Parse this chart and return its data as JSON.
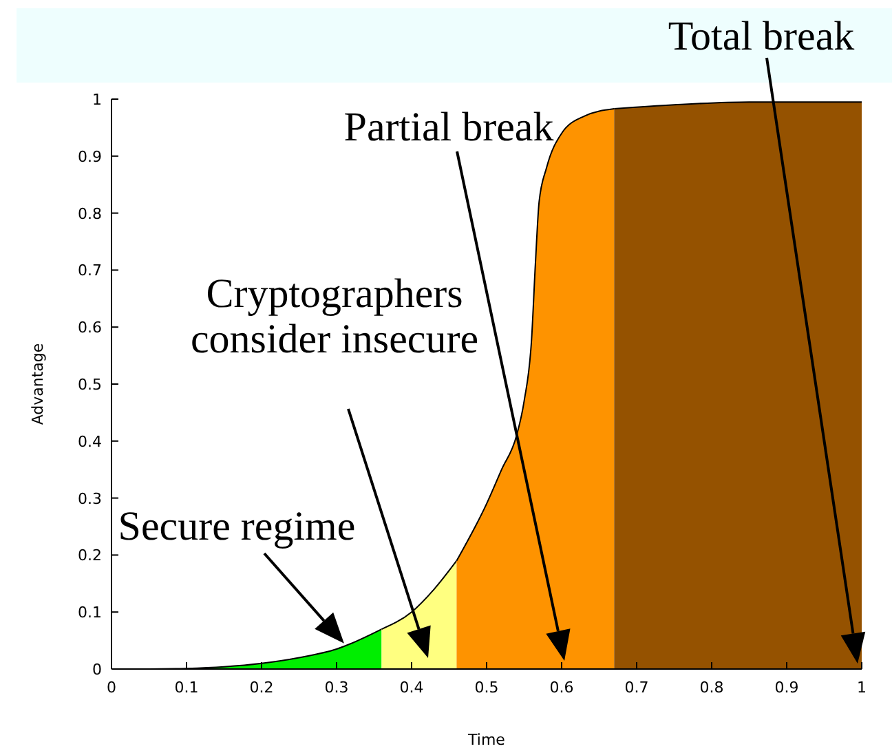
{
  "chart_data": {
    "type": "area",
    "xlabel": "Time",
    "ylabel": "Advantage",
    "xlim": [
      0,
      1
    ],
    "ylim": [
      0,
      1
    ],
    "xticks": [
      0,
      0.1,
      0.2,
      0.3,
      0.4,
      0.5,
      0.6,
      0.7,
      0.8,
      0.9,
      1
    ],
    "yticks": [
      0,
      0.1,
      0.2,
      0.3,
      0.4,
      0.5,
      0.6,
      0.7,
      0.8,
      0.9,
      1
    ],
    "grid": false,
    "series": [
      {
        "color": "#00ee00",
        "x": [
          0,
          0.05,
          0.1,
          0.15,
          0.2,
          0.25,
          0.3,
          0.36
        ],
        "values": [
          0,
          0,
          0.001,
          0.004,
          0.01,
          0.02,
          0.035,
          0.07
        ]
      },
      {
        "color": "#ffff80",
        "x": [
          0.36,
          0.4,
          0.43,
          0.46
        ],
        "values": [
          0.07,
          0.1,
          0.14,
          0.19
        ]
      },
      {
        "color": "#fe9300",
        "x": [
          0.46,
          0.5,
          0.52,
          0.54,
          0.55,
          0.56,
          0.565,
          0.57,
          0.58,
          0.6,
          0.63,
          0.67
        ],
        "values": [
          0.19,
          0.29,
          0.35,
          0.41,
          0.47,
          0.58,
          0.71,
          0.82,
          0.88,
          0.94,
          0.97,
          0.983
        ]
      },
      {
        "color": "#955200",
        "x": [
          0.67,
          0.75,
          0.85,
          1
        ],
        "values": [
          0.983,
          0.99,
          0.995,
          0.995
        ]
      }
    ],
    "annotations": [
      {
        "text": "Secure regime",
        "x": 0.31,
        "y": 0.045
      },
      "Cryptographers\nconsider insecure",
      "Partial break",
      "Total break"
    ]
  }
}
